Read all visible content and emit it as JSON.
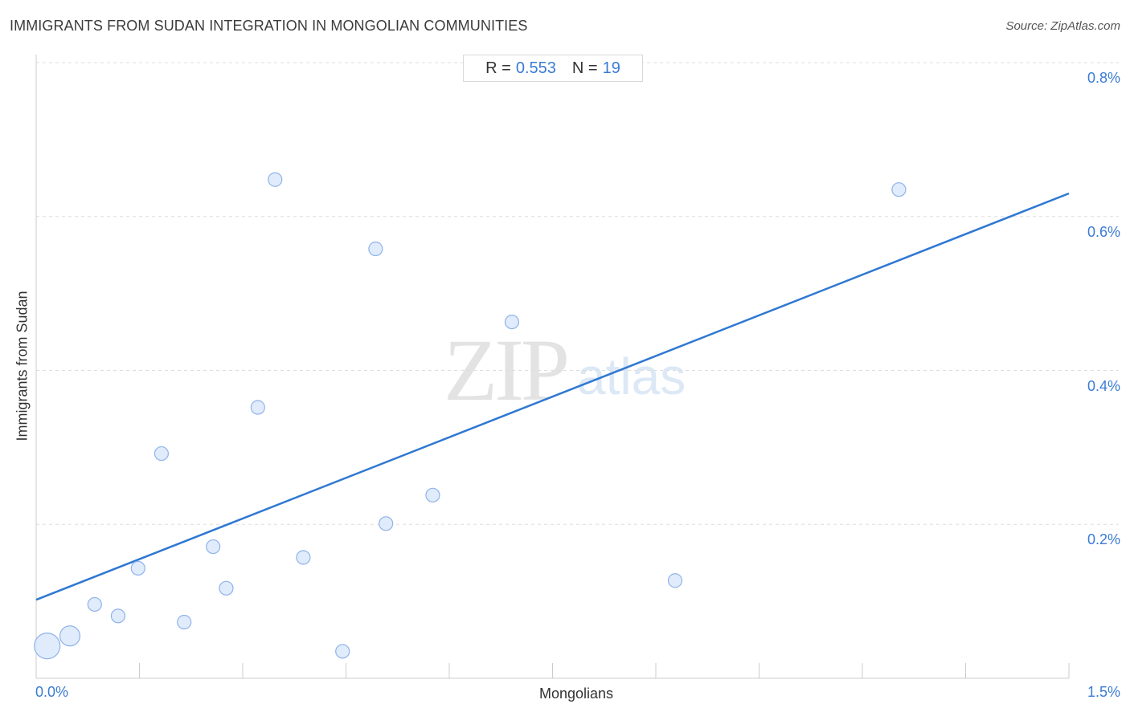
{
  "title": "IMMIGRANTS FROM SUDAN INTEGRATION IN MONGOLIAN COMMUNITIES",
  "source": "Source: ZipAtlas.com",
  "stats": {
    "r_label": "R =",
    "r_value": "0.553",
    "n_label": "N =",
    "n_value": "19"
  },
  "watermark": {
    "zip": "ZIP",
    "atlas": "atlas"
  },
  "colors": {
    "accent": "#3a7bd5",
    "line": "#2f78d2",
    "point_fill": "#dbe8fb",
    "point_stroke": "#8fb3e8",
    "grid": "#dddddd"
  },
  "chart_data": {
    "type": "scatter",
    "title": "IMMIGRANTS FROM SUDAN INTEGRATION IN MONGOLIAN COMMUNITIES",
    "xlabel": "Mongolians",
    "ylabel": "Immigrants from Sudan",
    "xlim": [
      0.0,
      1.5
    ],
    "ylim": [
      0.0,
      0.8
    ],
    "x_tick_labels": [
      "0.0%",
      "1.5%"
    ],
    "y_ticks": [
      0.2,
      0.4,
      0.6,
      0.8
    ],
    "y_tick_labels": [
      "0.2%",
      "0.4%",
      "0.6%",
      "0.8%"
    ],
    "grid": "horizontal dashed",
    "points": [
      {
        "x": 0.016,
        "y": 0.042,
        "size": 3
      },
      {
        "x": 0.049,
        "y": 0.055,
        "size": 2
      },
      {
        "x": 0.085,
        "y": 0.096,
        "size": 1
      },
      {
        "x": 0.119,
        "y": 0.081,
        "size": 1
      },
      {
        "x": 0.148,
        "y": 0.143,
        "size": 1
      },
      {
        "x": 0.182,
        "y": 0.292,
        "size": 1
      },
      {
        "x": 0.215,
        "y": 0.073,
        "size": 1
      },
      {
        "x": 0.257,
        "y": 0.171,
        "size": 1
      },
      {
        "x": 0.276,
        "y": 0.117,
        "size": 1
      },
      {
        "x": 0.322,
        "y": 0.352,
        "size": 1
      },
      {
        "x": 0.347,
        "y": 0.648,
        "size": 1
      },
      {
        "x": 0.388,
        "y": 0.157,
        "size": 1
      },
      {
        "x": 0.445,
        "y": 0.035,
        "size": 1
      },
      {
        "x": 0.493,
        "y": 0.558,
        "size": 1
      },
      {
        "x": 0.508,
        "y": 0.201,
        "size": 1
      },
      {
        "x": 0.576,
        "y": 0.238,
        "size": 1
      },
      {
        "x": 0.691,
        "y": 0.463,
        "size": 1
      },
      {
        "x": 0.928,
        "y": 0.127,
        "size": 1
      },
      {
        "x": 1.253,
        "y": 0.635,
        "size": 1
      }
    ],
    "trendline": {
      "x": [
        0.0,
        1.5
      ],
      "y": [
        0.102,
        0.63
      ]
    }
  }
}
